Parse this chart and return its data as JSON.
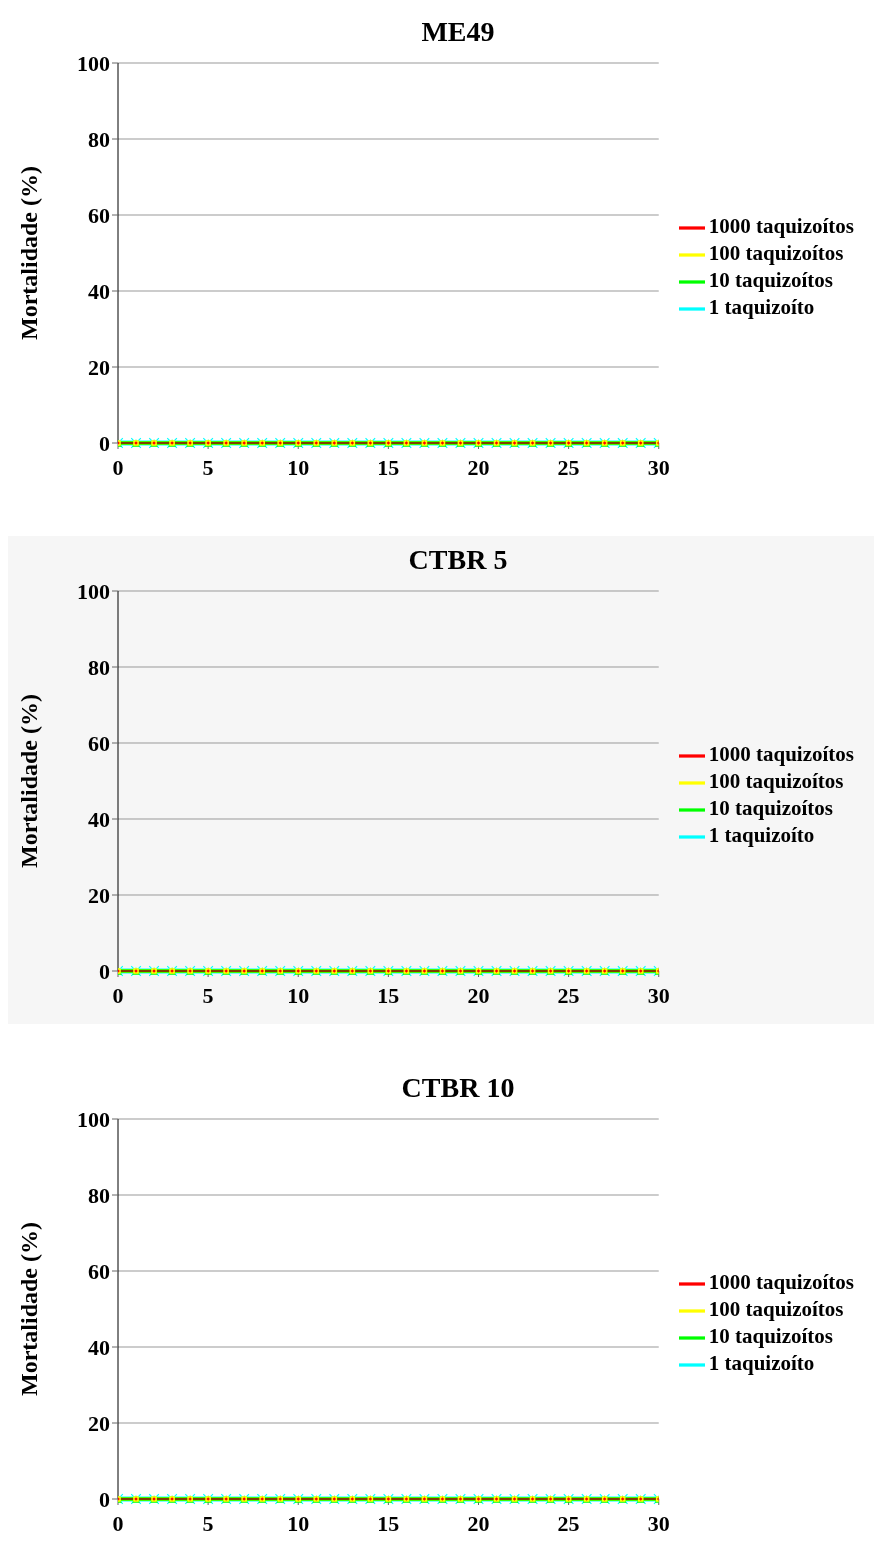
{
  "chart_data": [
    {
      "type": "line",
      "title": "ME49",
      "ylabel": "Mortalidade (%)",
      "x": [
        0,
        1,
        2,
        3,
        4,
        5,
        6,
        7,
        8,
        9,
        10,
        11,
        12,
        13,
        14,
        15,
        16,
        17,
        18,
        19,
        20,
        21,
        22,
        23,
        24,
        25,
        26,
        27,
        28,
        29,
        30
      ],
      "xlim": [
        0,
        30
      ],
      "xticks": [
        0,
        5,
        10,
        15,
        20,
        25,
        30
      ],
      "ylim": [
        0,
        100
      ],
      "yticks": [
        0,
        20,
        40,
        60,
        80,
        100
      ],
      "grid": "y",
      "legend": "right",
      "series": [
        {
          "name": "1000 taquizoítos",
          "color": "#ff0000",
          "marker": "diamond",
          "values": [
            0,
            0,
            0,
            0,
            0,
            0,
            0,
            0,
            0,
            0,
            0,
            0,
            0,
            0,
            0,
            0,
            0,
            0,
            0,
            0,
            0,
            0,
            0,
            0,
            0,
            0,
            0,
            0,
            0,
            0,
            0
          ]
        },
        {
          "name": "100 taquizoítos",
          "color": "#ffff00",
          "marker": "square",
          "values": [
            0,
            0,
            0,
            0,
            0,
            0,
            0,
            0,
            0,
            0,
            0,
            0,
            0,
            0,
            0,
            0,
            0,
            0,
            0,
            0,
            0,
            0,
            0,
            0,
            0,
            0,
            0,
            0,
            0,
            0,
            0
          ]
        },
        {
          "name": "10 taquizoítos",
          "color": "#00ff00",
          "marker": "triangle",
          "values": [
            0,
            0,
            0,
            0,
            0,
            0,
            0,
            0,
            0,
            0,
            0,
            0,
            0,
            0,
            0,
            0,
            0,
            0,
            0,
            0,
            0,
            0,
            0,
            0,
            0,
            0,
            0,
            0,
            0,
            0,
            0
          ]
        },
        {
          "name": "1 taquizoíto",
          "color": "#00ffff",
          "marker": "cross",
          "values": [
            0,
            0,
            0,
            0,
            0,
            0,
            0,
            0,
            0,
            0,
            0,
            0,
            0,
            0,
            0,
            0,
            0,
            0,
            0,
            0,
            0,
            0,
            0,
            0,
            0,
            0,
            0,
            0,
            0,
            0,
            0
          ]
        }
      ]
    },
    {
      "type": "line",
      "title": "CTBR 5",
      "ylabel": "Mortalidade (%)",
      "x": [
        0,
        1,
        2,
        3,
        4,
        5,
        6,
        7,
        8,
        9,
        10,
        11,
        12,
        13,
        14,
        15,
        16,
        17,
        18,
        19,
        20,
        21,
        22,
        23,
        24,
        25,
        26,
        27,
        28,
        29,
        30
      ],
      "xlim": [
        0,
        30
      ],
      "xticks": [
        0,
        5,
        10,
        15,
        20,
        25,
        30
      ],
      "ylim": [
        0,
        100
      ],
      "yticks": [
        0,
        20,
        40,
        60,
        80,
        100
      ],
      "grid": "y",
      "legend": "right",
      "series": [
        {
          "name": "1000 taquizoítos",
          "color": "#ff0000",
          "marker": "diamond",
          "values": [
            0,
            0,
            0,
            0,
            0,
            0,
            0,
            0,
            0,
            0,
            0,
            0,
            0,
            0,
            0,
            0,
            0,
            0,
            0,
            0,
            0,
            0,
            0,
            0,
            0,
            0,
            0,
            0,
            0,
            0,
            0
          ]
        },
        {
          "name": "100 taquizoítos",
          "color": "#ffff00",
          "marker": "square",
          "values": [
            0,
            0,
            0,
            0,
            0,
            0,
            0,
            0,
            0,
            0,
            0,
            0,
            0,
            0,
            0,
            0,
            0,
            0,
            0,
            0,
            0,
            0,
            0,
            0,
            0,
            0,
            0,
            0,
            0,
            0,
            0
          ]
        },
        {
          "name": "10 taquizoítos",
          "color": "#00ff00",
          "marker": "triangle",
          "values": [
            0,
            0,
            0,
            0,
            0,
            0,
            0,
            0,
            0,
            0,
            0,
            0,
            0,
            0,
            0,
            0,
            0,
            0,
            0,
            0,
            0,
            0,
            0,
            0,
            0,
            0,
            0,
            0,
            0,
            0,
            0
          ]
        },
        {
          "name": "1 taquizoíto",
          "color": "#00ffff",
          "marker": "cross",
          "values": [
            0,
            0,
            0,
            0,
            0,
            0,
            0,
            0,
            0,
            0,
            0,
            0,
            0,
            0,
            0,
            0,
            0,
            0,
            0,
            0,
            0,
            0,
            0,
            0,
            0,
            0,
            0,
            0,
            0,
            0,
            0
          ]
        }
      ]
    },
    {
      "type": "line",
      "title": "CTBR 10",
      "ylabel": "Mortalidade (%)",
      "x": [
        0,
        1,
        2,
        3,
        4,
        5,
        6,
        7,
        8,
        9,
        10,
        11,
        12,
        13,
        14,
        15,
        16,
        17,
        18,
        19,
        20,
        21,
        22,
        23,
        24,
        25,
        26,
        27,
        28,
        29,
        30
      ],
      "xlim": [
        0,
        30
      ],
      "xticks": [
        0,
        5,
        10,
        15,
        20,
        25,
        30
      ],
      "ylim": [
        0,
        100
      ],
      "yticks": [
        0,
        20,
        40,
        60,
        80,
        100
      ],
      "grid": "y",
      "legend": "right",
      "series": [
        {
          "name": "1000 taquizoítos",
          "color": "#ff0000",
          "marker": "diamond",
          "values": [
            0,
            0,
            0,
            0,
            0,
            0,
            0,
            0,
            0,
            0,
            0,
            0,
            0,
            0,
            0,
            0,
            0,
            0,
            0,
            0,
            0,
            0,
            0,
            0,
            0,
            0,
            0,
            0,
            0,
            0,
            0
          ]
        },
        {
          "name": "100 taquizoítos",
          "color": "#ffff00",
          "marker": "square",
          "values": [
            0,
            0,
            0,
            0,
            0,
            0,
            0,
            0,
            0,
            0,
            0,
            0,
            0,
            0,
            0,
            0,
            0,
            0,
            0,
            0,
            0,
            0,
            0,
            0,
            0,
            0,
            0,
            0,
            0,
            0,
            0
          ]
        },
        {
          "name": "10 taquizoítos",
          "color": "#00ff00",
          "marker": "triangle",
          "values": [
            0,
            0,
            0,
            0,
            0,
            0,
            0,
            0,
            0,
            0,
            0,
            0,
            0,
            0,
            0,
            0,
            0,
            0,
            0,
            0,
            0,
            0,
            0,
            0,
            0,
            0,
            0,
            0,
            0,
            0,
            0
          ]
        },
        {
          "name": "1 taquizoíto",
          "color": "#00ffff",
          "marker": "cross",
          "values": [
            0,
            0,
            0,
            0,
            0,
            0,
            0,
            0,
            0,
            0,
            0,
            0,
            0,
            0,
            0,
            0,
            0,
            0,
            0,
            0,
            0,
            0,
            0,
            0,
            0,
            0,
            0,
            0,
            0,
            0,
            0
          ]
        }
      ]
    }
  ]
}
